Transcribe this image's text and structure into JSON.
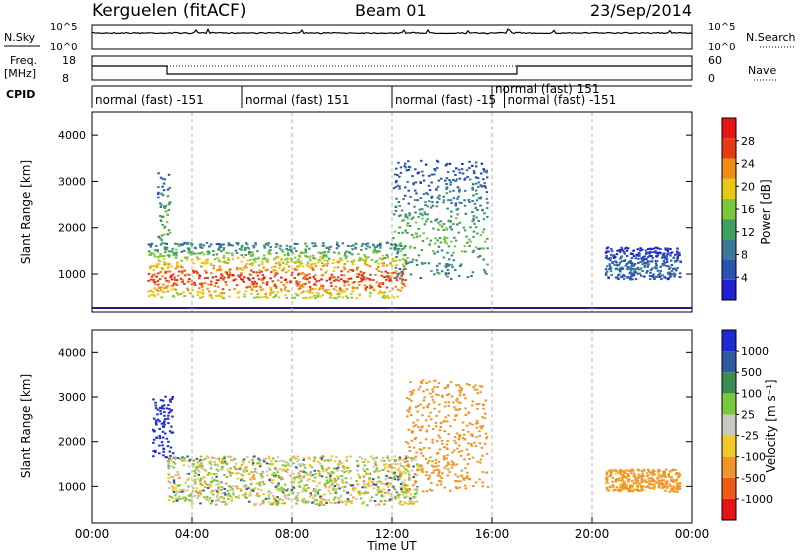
{
  "header": {
    "station": "Kerguelen (fitACF)",
    "beam": "Beam 01",
    "date": "23/Sep/2014"
  },
  "top_panels": {
    "nsky_label": "N.Sky",
    "nsky_ticks": [
      "10^5",
      "10^0"
    ],
    "nsearch_label": "N.Search",
    "nsearch_ticks": [
      "10^5",
      "10^0"
    ],
    "freq_label_1": "Freq.",
    "freq_label_2": "[MHz]",
    "freq_ticks": [
      "18",
      "8"
    ],
    "nave_label": "Nave",
    "nave_ticks": [
      "60",
      "0"
    ],
    "cpid_label": "CPID",
    "cpid_segments": [
      {
        "label": "normal (fast) -151",
        "start": 0.0,
        "end": 6.0
      },
      {
        "label": "normal (fast) 151",
        "start": 6.0,
        "end": 12.0
      },
      {
        "label": "normal (fast) -15",
        "start": 12.0,
        "end": 16.0
      },
      {
        "label": "normal (fast) 151",
        "start": 16.0,
        "end": 18.0
      },
      {
        "label": "normal (fast) -151",
        "start": 16.5,
        "end": 24.0
      }
    ]
  },
  "chart_data": [
    {
      "type": "heatmap",
      "title": "Power",
      "ylabel": "Slant Range [km]",
      "xlabel": "",
      "xlim": [
        0,
        24
      ],
      "ylim": [
        180,
        4500
      ],
      "yticks": [
        "1000",
        "2000",
        "3000",
        "4000"
      ],
      "colorbar_label": "Power [dB]",
      "colorbar_ticks": [
        "4",
        "8",
        "12",
        "16",
        "20",
        "24",
        "28"
      ],
      "colorbar_range": [
        0,
        32
      ],
      "regions": [
        {
          "t_start": 2.2,
          "t_end": 12.5,
          "range_low": 500,
          "range_high": 1700,
          "power": 28
        },
        {
          "t_start": 2.6,
          "t_end": 3.1,
          "range_low": 1600,
          "range_high": 3200,
          "power": 16
        },
        {
          "t_start": 12.0,
          "t_end": 15.8,
          "range_low": 900,
          "range_high": 3500,
          "power": 14
        },
        {
          "t_start": 20.5,
          "t_end": 23.5,
          "range_low": 900,
          "range_high": 1600,
          "power": 8
        }
      ]
    },
    {
      "type": "heatmap",
      "title": "Velocity",
      "ylabel": "Slant Range [km]",
      "xlabel": "Time UT",
      "xlim": [
        0,
        24
      ],
      "ylim": [
        180,
        4500
      ],
      "yticks": [
        "1000",
        "2000",
        "3000",
        "4000"
      ],
      "xticks": [
        "00:00",
        "04:00",
        "08:00",
        "12:00",
        "16:00",
        "20:00",
        "00:00"
      ],
      "colorbar_label": "Velocity [m s⁻¹]",
      "colorbar_ticks": [
        "1000",
        "500",
        "100",
        "25",
        "-25",
        "-100",
        "-500",
        "-1000"
      ],
      "regions": [
        {
          "t_start": 2.4,
          "t_end": 3.2,
          "range_low": 1600,
          "range_high": 3100,
          "velocity": 800
        },
        {
          "t_start": 3.0,
          "t_end": 13.0,
          "range_low": 600,
          "range_high": 1700,
          "velocity": 0
        },
        {
          "t_start": 12.5,
          "t_end": 15.8,
          "range_low": 900,
          "range_high": 3400,
          "velocity": -300
        },
        {
          "t_start": 20.5,
          "t_end": 23.5,
          "range_low": 900,
          "range_high": 1400,
          "velocity": -200
        }
      ]
    }
  ],
  "colors": {
    "power_scale": [
      "#1e1ed2",
      "#2a52b0",
      "#3a7a96",
      "#40a060",
      "#7cc83c",
      "#e8c814",
      "#f08c14",
      "#e63c14",
      "#e61414"
    ],
    "velocity_scale": [
      "#1e2ad2",
      "#2f5aa0",
      "#3c8c50",
      "#78c83c",
      "#c8c8c0",
      "#f0c828",
      "#f09628",
      "#f05a14",
      "#e61414"
    ],
    "gridline": "#b4b4b4"
  }
}
